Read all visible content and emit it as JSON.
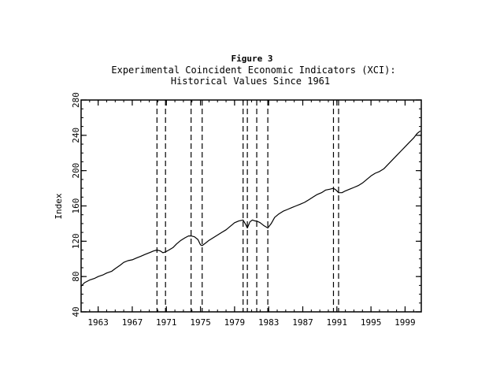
{
  "chart_data": {
    "type": "line",
    "figure_label": "Figure 3",
    "title_line1": "Experimental Coincident Economic Indicators (XCI):",
    "title_line2": "Historical Values Since 1961",
    "xlabel": "",
    "ylabel": "Index",
    "xlim": [
      1961,
      2000.9
    ],
    "ylim": [
      40,
      280
    ],
    "x_ticks": [
      1963,
      1967,
      1971,
      1975,
      1979,
      1983,
      1987,
      1991,
      1995,
      1999
    ],
    "y_ticks": [
      40,
      80,
      120,
      160,
      200,
      240,
      280
    ],
    "grid": false,
    "legend": "none",
    "line_color": "#000000",
    "recession_lines": [
      1969.9,
      1970.9,
      1973.9,
      1975.2,
      1980.0,
      1980.5,
      1981.6,
      1982.9,
      1990.6,
      1991.2
    ],
    "series": [
      {
        "x": [
          1961.0,
          1961.4,
          1962.0,
          1962.6,
          1963.0,
          1963.6,
          1964.0,
          1964.6,
          1965.0,
          1965.6,
          1966.0,
          1966.5,
          1967.0,
          1967.5,
          1968.0,
          1968.5,
          1969.0,
          1969.5,
          1969.9,
          1970.3,
          1970.6,
          1970.9,
          1971.3,
          1971.8,
          1972.2,
          1972.7,
          1973.2,
          1973.6,
          1973.9,
          1974.3,
          1974.7,
          1975.0,
          1975.2,
          1975.6,
          1976.0,
          1976.5,
          1977.0,
          1977.5,
          1978.0,
          1978.5,
          1979.0,
          1979.5,
          1980.0,
          1980.3,
          1980.5,
          1980.8,
          1981.1,
          1981.4,
          1981.6,
          1982.0,
          1982.4,
          1982.9,
          1983.3,
          1983.7,
          1984.2,
          1984.7,
          1985.2,
          1985.7,
          1986.2,
          1986.7,
          1987.2,
          1987.7,
          1988.2,
          1988.7,
          1989.2,
          1989.7,
          1990.2,
          1990.6,
          1990.9,
          1991.2,
          1991.6,
          1992.0,
          1992.5,
          1993.0,
          1993.5,
          1994.0,
          1994.5,
          1995.0,
          1995.5,
          1996.0,
          1996.5,
          1997.0,
          1997.5,
          1998.0,
          1998.5,
          1999.0,
          1999.5,
          2000.0,
          2000.4,
          2000.8
        ],
        "values": [
          69,
          73,
          76,
          78,
          80,
          82,
          84,
          86,
          89,
          93,
          96,
          98,
          99,
          101,
          103,
          105,
          107,
          109,
          110,
          109,
          107,
          108,
          110,
          113,
          117,
          121,
          124,
          126,
          126,
          125,
          122,
          116,
          115,
          118,
          121,
          124,
          127,
          130,
          133,
          137,
          141,
          143,
          144,
          139,
          135,
          142,
          144,
          143,
          143,
          141,
          138,
          135,
          140,
          147,
          151,
          154,
          156,
          158,
          160,
          162,
          164,
          167,
          170,
          173,
          175,
          178,
          179,
          180,
          178,
          175,
          175,
          177,
          179,
          181,
          183,
          186,
          190,
          194,
          197,
          199,
          202,
          207,
          212,
          217,
          222,
          227,
          232,
          237,
          242,
          245
        ]
      }
    ]
  }
}
